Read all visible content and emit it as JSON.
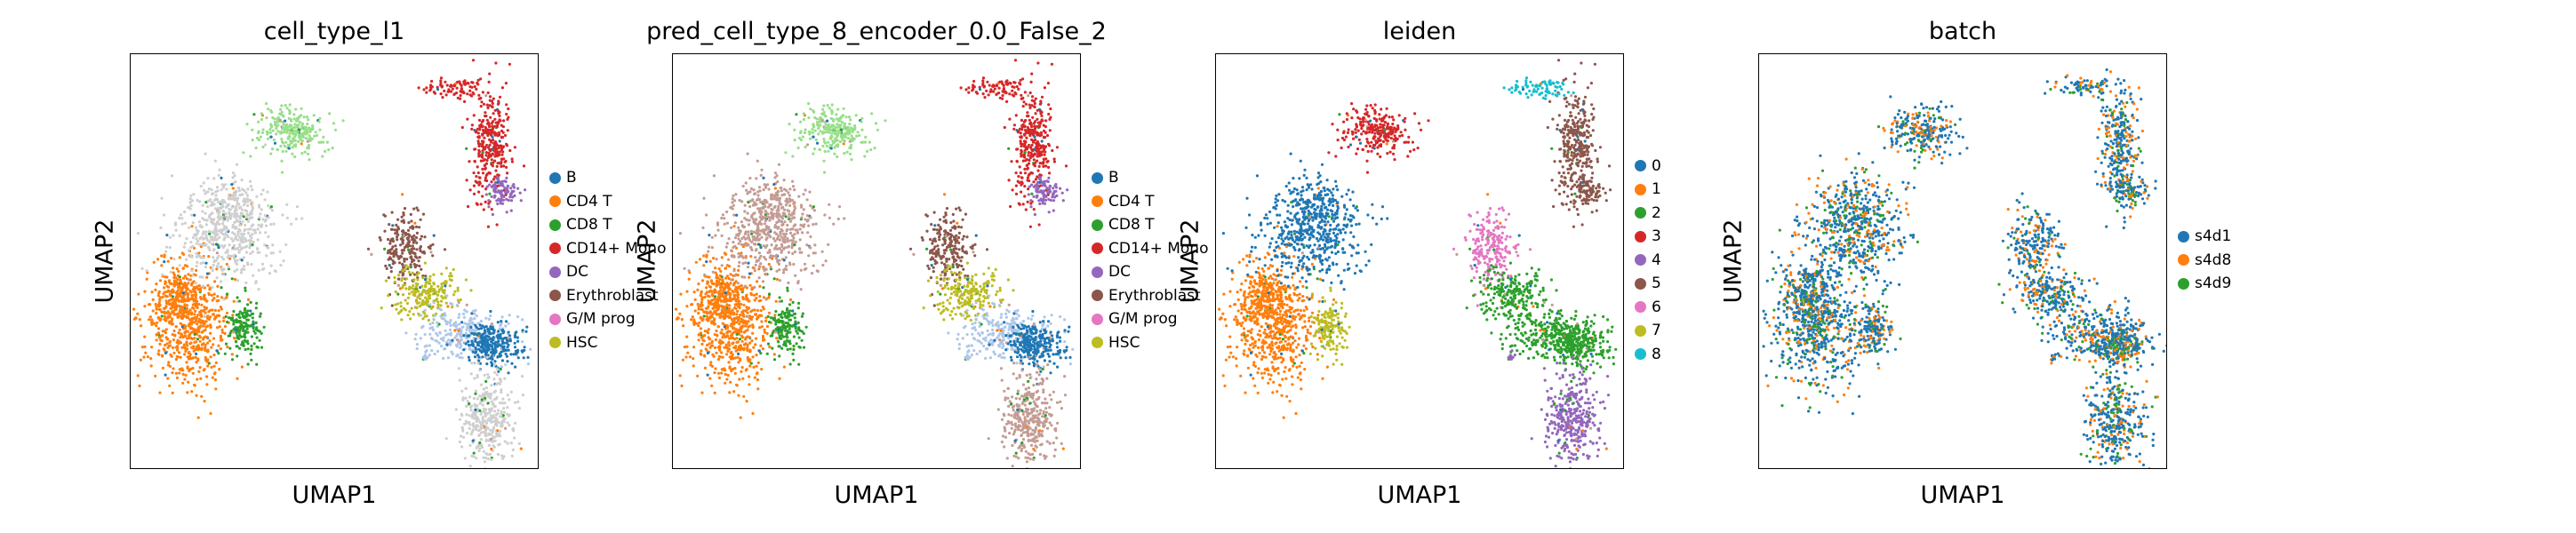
{
  "chart_data": [
    {
      "type": "scatter",
      "title": "cell_type_l1",
      "xlabel": "UMAP1",
      "ylabel": "UMAP2",
      "color_by": "cell_type",
      "legend": [
        {
          "label": "B",
          "color": "#1f77b4"
        },
        {
          "label": "CD4 T",
          "color": "#ff7f0e"
        },
        {
          "label": "CD8 T",
          "color": "#2ca02c"
        },
        {
          "label": "CD14+ Mono",
          "color": "#d62728"
        },
        {
          "label": "DC",
          "color": "#9467bd"
        },
        {
          "label": "Erythroblast",
          "color": "#8c564b"
        },
        {
          "label": "G/M prog",
          "color": "#e377c2"
        },
        {
          "label": "HSC",
          "color": "#bcbd22"
        }
      ],
      "legend_position": "right"
    },
    {
      "type": "scatter",
      "title": "pred_cell_type_8_encoder_0.0_False_2",
      "xlabel": "UMAP1",
      "ylabel": "UMAP2",
      "color_by": "pred",
      "legend": [
        {
          "label": "B",
          "color": "#1f77b4"
        },
        {
          "label": "CD4 T",
          "color": "#ff7f0e"
        },
        {
          "label": "CD8 T",
          "color": "#2ca02c"
        },
        {
          "label": "CD14+ Mono",
          "color": "#d62728"
        },
        {
          "label": "DC",
          "color": "#9467bd"
        },
        {
          "label": "Erythroblast",
          "color": "#8c564b"
        },
        {
          "label": "G/M prog",
          "color": "#e377c2"
        },
        {
          "label": "HSC",
          "color": "#bcbd22"
        }
      ],
      "legend_position": "right"
    },
    {
      "type": "scatter",
      "title": "leiden",
      "xlabel": "UMAP1",
      "ylabel": "UMAP2",
      "color_by": "leiden",
      "legend": [
        {
          "label": "0",
          "color": "#1f77b4"
        },
        {
          "label": "1",
          "color": "#ff7f0e"
        },
        {
          "label": "2",
          "color": "#2ca02c"
        },
        {
          "label": "3",
          "color": "#d62728"
        },
        {
          "label": "4",
          "color": "#9467bd"
        },
        {
          "label": "5",
          "color": "#8c564b"
        },
        {
          "label": "6",
          "color": "#e377c2"
        },
        {
          "label": "7",
          "color": "#bcbd22"
        },
        {
          "label": "8",
          "color": "#17becf"
        }
      ],
      "legend_position": "right"
    },
    {
      "type": "scatter",
      "title": "batch",
      "xlabel": "UMAP1",
      "ylabel": "UMAP2",
      "color_by": "batch",
      "legend": [
        {
          "label": "s4d1",
          "color": "#1f77b4"
        },
        {
          "label": "s4d8",
          "color": "#ff7f0e"
        },
        {
          "label": "s4d9",
          "color": "#2ca02c"
        }
      ],
      "legend_position": "right"
    }
  ]
}
